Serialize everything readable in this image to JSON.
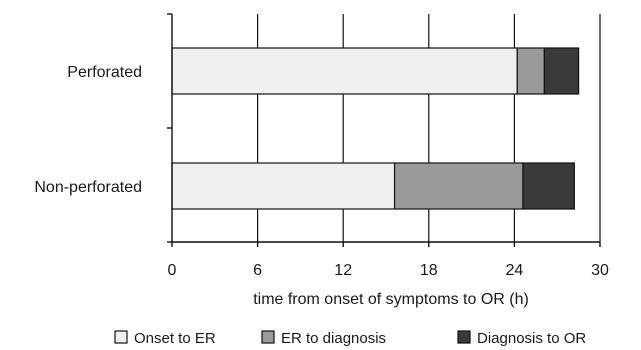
{
  "chart_data": {
    "type": "bar",
    "orientation": "horizontal",
    "stacked": true,
    "categories": [
      "Perforated",
      "Non-perforated"
    ],
    "series": [
      {
        "name": "Onset to ER",
        "values": [
          24.2,
          15.6
        ],
        "color": "#efefef"
      },
      {
        "name": "ER to diagnosis",
        "values": [
          1.9,
          9.0
        ],
        "color": "#9a9a9a"
      },
      {
        "name": "Diagnosis to OR",
        "values": [
          2.4,
          3.6
        ],
        "color": "#3a3a3a"
      }
    ],
    "xlabel": "time from onset of symptoms to OR (h)",
    "ylabel": "",
    "xlim": [
      0,
      30
    ],
    "xticks": [
      "0",
      "6",
      "12",
      "18",
      "24",
      "30"
    ],
    "grid": "vertical",
    "legend_position": "bottom"
  }
}
